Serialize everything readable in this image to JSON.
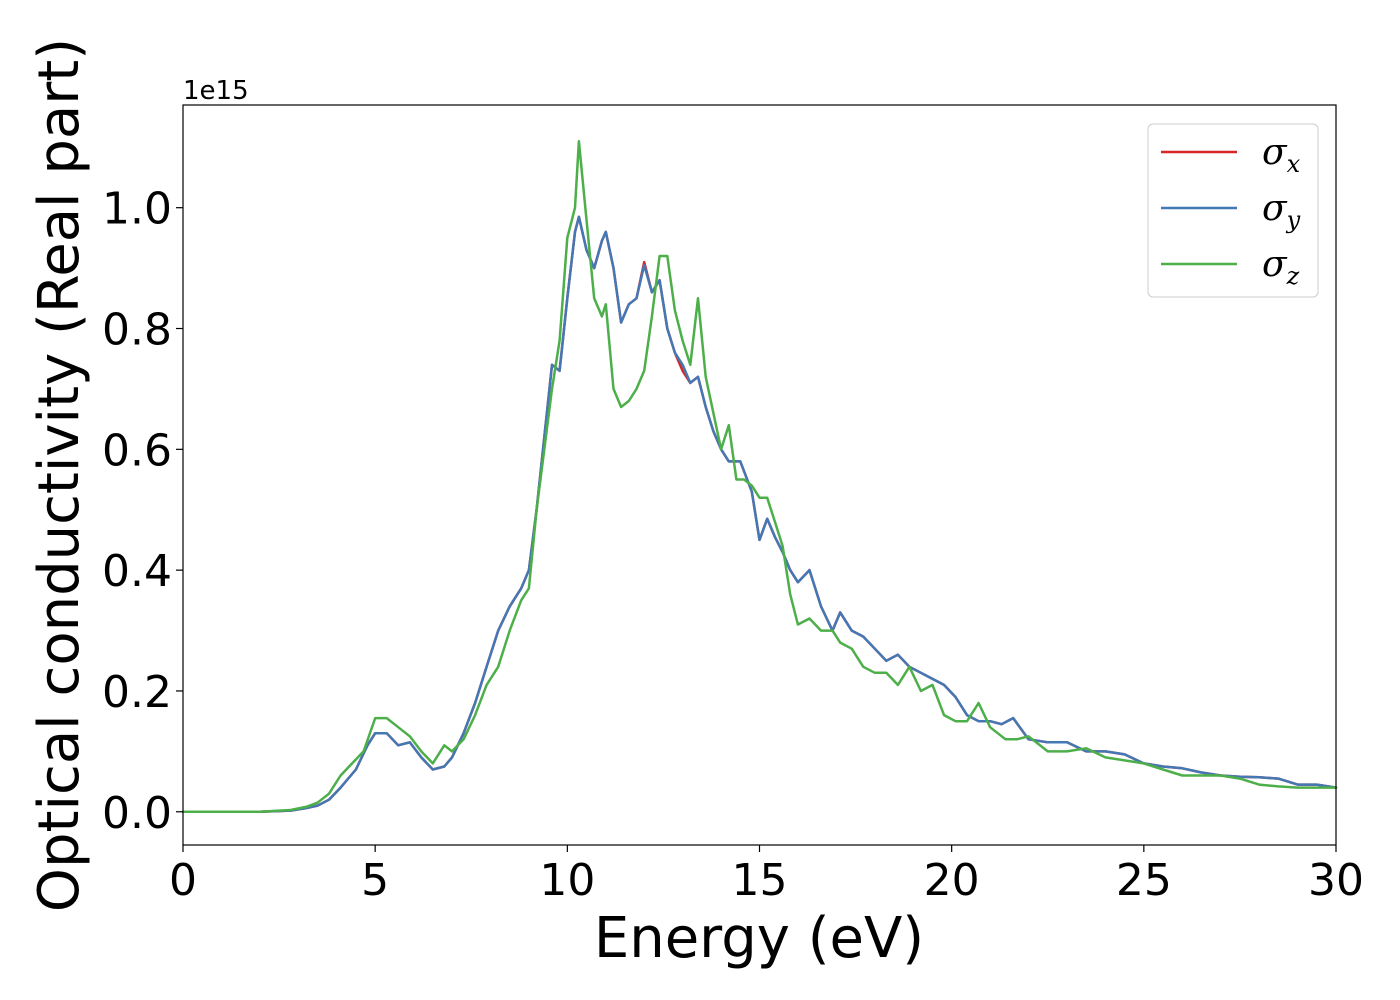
{
  "chart_data": {
    "type": "line",
    "xlabel": "Energy (eV)",
    "ylabel": "Optical conductivity (Real part)",
    "offset_text": "1e15",
    "xlim": [
      0,
      30
    ],
    "ylim": [
      -0.055,
      1.17
    ],
    "xticks": [
      0,
      5,
      10,
      15,
      20,
      25,
      30
    ],
    "yticks": [
      0.0,
      0.2,
      0.4,
      0.6,
      0.8,
      1.0
    ],
    "ytick_labels": [
      "0.0",
      "0.2",
      "0.4",
      "0.6",
      "0.8",
      "1.0"
    ],
    "grid": false,
    "legend_position": "top-right",
    "series": [
      {
        "name": "σx",
        "legend_base": "σ",
        "legend_sub": "x",
        "color": "#d62728",
        "x": [
          0,
          1,
          2,
          2.8,
          3.2,
          3.5,
          3.8,
          4.1,
          4.5,
          4.8,
          5.0,
          5.3,
          5.6,
          5.9,
          6.2,
          6.5,
          6.8,
          7.0,
          7.3,
          7.6,
          7.9,
          8.2,
          8.5,
          8.8,
          9.0,
          9.2,
          9.4,
          9.6,
          9.8,
          10.0,
          10.2,
          10.3,
          10.5,
          10.7,
          10.9,
          11.0,
          11.2,
          11.4,
          11.6,
          11.8,
          12.0,
          12.2,
          12.4,
          12.6,
          12.8,
          13.0,
          13.2,
          13.4,
          13.6,
          13.8,
          14.0,
          14.2,
          14.5,
          14.8,
          15.0,
          15.2,
          15.4,
          15.6,
          15.8,
          16.0,
          16.3,
          16.6,
          16.9,
          17.1,
          17.4,
          17.7,
          18.0,
          18.3,
          18.6,
          18.9,
          19.2,
          19.5,
          19.8,
          20.1,
          20.4,
          20.7,
          21.0,
          21.3,
          21.6,
          22.0,
          22.5,
          23.0,
          23.5,
          24.0,
          24.5,
          25.0,
          25.5,
          26.0,
          26.5,
          27.0,
          27.5,
          28.0,
          28.5,
          29.0,
          29.5,
          30.0
        ],
        "y": [
          0.0,
          0.0,
          0.0,
          0.002,
          0.006,
          0.01,
          0.02,
          0.04,
          0.07,
          0.11,
          0.13,
          0.13,
          0.11,
          0.115,
          0.09,
          0.07,
          0.075,
          0.09,
          0.13,
          0.18,
          0.24,
          0.3,
          0.34,
          0.37,
          0.4,
          0.5,
          0.62,
          0.74,
          0.73,
          0.85,
          0.96,
          0.985,
          0.93,
          0.9,
          0.945,
          0.96,
          0.9,
          0.81,
          0.84,
          0.85,
          0.91,
          0.86,
          0.88,
          0.8,
          0.76,
          0.73,
          0.71,
          0.72,
          0.67,
          0.63,
          0.6,
          0.58,
          0.58,
          0.53,
          0.45,
          0.485,
          0.455,
          0.43,
          0.4,
          0.38,
          0.4,
          0.34,
          0.3,
          0.33,
          0.3,
          0.29,
          0.27,
          0.25,
          0.26,
          0.24,
          0.23,
          0.22,
          0.21,
          0.19,
          0.16,
          0.15,
          0.15,
          0.145,
          0.155,
          0.12,
          0.115,
          0.115,
          0.1,
          0.1,
          0.095,
          0.08,
          0.075,
          0.072,
          0.065,
          0.06,
          0.058,
          0.057,
          0.055,
          0.045,
          0.045,
          0.04
        ]
      },
      {
        "name": "σy",
        "legend_base": "σ",
        "legend_sub": "y",
        "color": "#4378b5",
        "x": [
          0,
          1,
          2,
          2.8,
          3.2,
          3.5,
          3.8,
          4.1,
          4.5,
          4.8,
          5.0,
          5.3,
          5.6,
          5.9,
          6.2,
          6.5,
          6.8,
          7.0,
          7.3,
          7.6,
          7.9,
          8.2,
          8.5,
          8.8,
          9.0,
          9.2,
          9.4,
          9.6,
          9.8,
          10.0,
          10.2,
          10.3,
          10.5,
          10.7,
          10.9,
          11.0,
          11.2,
          11.4,
          11.6,
          11.8,
          12.0,
          12.2,
          12.4,
          12.6,
          12.8,
          13.0,
          13.2,
          13.4,
          13.6,
          13.8,
          14.0,
          14.2,
          14.5,
          14.8,
          15.0,
          15.2,
          15.4,
          15.6,
          15.8,
          16.0,
          16.3,
          16.6,
          16.9,
          17.1,
          17.4,
          17.7,
          18.0,
          18.3,
          18.6,
          18.9,
          19.2,
          19.5,
          19.8,
          20.1,
          20.4,
          20.7,
          21.0,
          21.3,
          21.6,
          22.0,
          22.5,
          23.0,
          23.5,
          24.0,
          24.5,
          25.0,
          25.5,
          26.0,
          26.5,
          27.0,
          27.5,
          28.0,
          28.5,
          29.0,
          29.5,
          30.0
        ],
        "y": [
          0.0,
          0.0,
          0.0,
          0.002,
          0.006,
          0.01,
          0.02,
          0.04,
          0.07,
          0.11,
          0.13,
          0.13,
          0.11,
          0.115,
          0.09,
          0.07,
          0.075,
          0.09,
          0.13,
          0.18,
          0.24,
          0.3,
          0.34,
          0.37,
          0.4,
          0.5,
          0.62,
          0.74,
          0.73,
          0.85,
          0.96,
          0.985,
          0.93,
          0.9,
          0.945,
          0.96,
          0.9,
          0.81,
          0.84,
          0.85,
          0.905,
          0.86,
          0.88,
          0.8,
          0.76,
          0.74,
          0.71,
          0.72,
          0.67,
          0.63,
          0.6,
          0.58,
          0.58,
          0.53,
          0.45,
          0.485,
          0.455,
          0.43,
          0.4,
          0.38,
          0.4,
          0.34,
          0.3,
          0.33,
          0.3,
          0.29,
          0.27,
          0.25,
          0.26,
          0.24,
          0.23,
          0.22,
          0.21,
          0.19,
          0.16,
          0.15,
          0.15,
          0.145,
          0.155,
          0.12,
          0.115,
          0.115,
          0.1,
          0.1,
          0.095,
          0.08,
          0.075,
          0.072,
          0.065,
          0.06,
          0.058,
          0.057,
          0.055,
          0.045,
          0.045,
          0.04
        ]
      },
      {
        "name": "σz",
        "legend_base": "σ",
        "legend_sub": "z",
        "color": "#4daf4a",
        "x": [
          0,
          1,
          2,
          2.8,
          3.2,
          3.5,
          3.8,
          4.1,
          4.4,
          4.7,
          5.0,
          5.3,
          5.6,
          5.9,
          6.2,
          6.5,
          6.8,
          7.0,
          7.3,
          7.6,
          7.9,
          8.2,
          8.5,
          8.8,
          9.0,
          9.2,
          9.4,
          9.6,
          9.8,
          10.0,
          10.2,
          10.3,
          10.5,
          10.7,
          10.9,
          11.0,
          11.2,
          11.4,
          11.6,
          11.8,
          12.0,
          12.2,
          12.4,
          12.6,
          12.8,
          13.0,
          13.2,
          13.4,
          13.6,
          13.8,
          14.0,
          14.2,
          14.4,
          14.6,
          14.8,
          15.0,
          15.2,
          15.4,
          15.6,
          15.8,
          16.0,
          16.3,
          16.6,
          16.9,
          17.1,
          17.4,
          17.7,
          18.0,
          18.3,
          18.6,
          18.9,
          19.2,
          19.5,
          19.8,
          20.1,
          20.4,
          20.7,
          21.0,
          21.4,
          21.7,
          22.0,
          22.5,
          23.0,
          23.5,
          24.0,
          24.5,
          25.0,
          25.5,
          26.0,
          26.5,
          27.0,
          27.5,
          28.0,
          28.5,
          29.0,
          29.5,
          30.0
        ],
        "y": [
          0.0,
          0.0,
          0.0,
          0.003,
          0.008,
          0.015,
          0.03,
          0.06,
          0.08,
          0.1,
          0.155,
          0.155,
          0.14,
          0.125,
          0.1,
          0.08,
          0.11,
          0.1,
          0.12,
          0.16,
          0.21,
          0.24,
          0.3,
          0.35,
          0.37,
          0.5,
          0.6,
          0.7,
          0.78,
          0.95,
          1.0,
          1.11,
          0.98,
          0.85,
          0.82,
          0.84,
          0.7,
          0.67,
          0.68,
          0.7,
          0.73,
          0.82,
          0.92,
          0.92,
          0.83,
          0.78,
          0.74,
          0.85,
          0.72,
          0.66,
          0.6,
          0.64,
          0.55,
          0.55,
          0.54,
          0.52,
          0.52,
          0.48,
          0.44,
          0.36,
          0.31,
          0.32,
          0.3,
          0.3,
          0.28,
          0.27,
          0.24,
          0.23,
          0.23,
          0.21,
          0.24,
          0.2,
          0.21,
          0.16,
          0.15,
          0.15,
          0.18,
          0.14,
          0.12,
          0.12,
          0.125,
          0.1,
          0.1,
          0.105,
          0.09,
          0.085,
          0.08,
          0.07,
          0.06,
          0.06,
          0.06,
          0.055,
          0.045,
          0.042,
          0.04,
          0.04,
          0.04
        ]
      }
    ]
  }
}
